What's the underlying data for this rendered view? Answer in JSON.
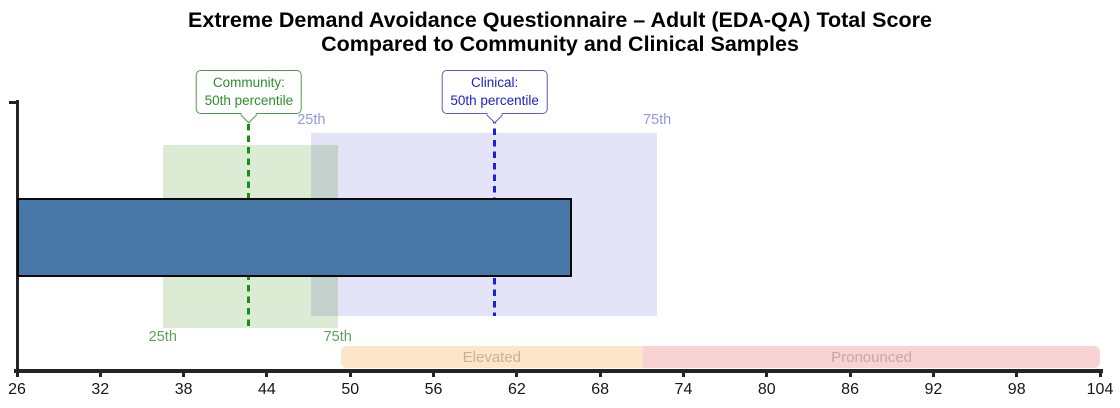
{
  "title": {
    "line1": "Extreme Demand Avoidance Questionnaire – Adult (EDA-QA) Total Score",
    "line2": "Compared to Community and Clinical Samples"
  },
  "labels": {
    "p25": "25th",
    "p75": "75th"
  },
  "callouts": {
    "community": {
      "line1": "Community:",
      "line2": "50th percentile"
    },
    "clinical": {
      "line1": "Clinical:",
      "line2": "50th percentile"
    }
  },
  "chart_data": {
    "type": "bar",
    "orientation": "horizontal",
    "title": "Extreme Demand Avoidance Questionnaire – Adult (EDA-QA) Total Score Compared to Community and Clinical Samples",
    "x_range": [
      26,
      104
    ],
    "x_ticks": [
      26,
      32,
      38,
      44,
      50,
      56,
      62,
      68,
      74,
      80,
      86,
      92,
      98,
      104
    ],
    "grid": false,
    "legend": false,
    "score_bar": {
      "start": 26,
      "value": 66
    },
    "reference_samples": [
      {
        "name": "Community",
        "percentile_25": 36.5,
        "percentile_50": 42.7,
        "percentile_75": 49.1
      },
      {
        "name": "Clinical",
        "percentile_25": 47.2,
        "percentile_50": 60.4,
        "percentile_75": 72.1
      }
    ],
    "bands": [
      {
        "label": "Elevated",
        "range": [
          49.3,
          71.1
        ]
      },
      {
        "label": "Pronounced",
        "range": [
          71.1,
          104
        ]
      }
    ]
  },
  "colors": {
    "title_color": "#000000",
    "axis_color": "#242424",
    "bar_fill": "#4878a8",
    "bar_border": "#0a0a0a",
    "community_fill": "#dcebd4",
    "clinical_fill": "#e3e4f7",
    "community_dash": "#168f16",
    "clinical_dash": "#1f1fd4",
    "community_border": "#4a9d4a",
    "community_text": "#2c8f2c",
    "clinical_border": "#5c5cc0",
    "clinical_text": "#2020cf",
    "percentile_lavender": "#9696e0",
    "percentile_green": "#61a061",
    "elevated_fill": "#fce5c8",
    "elevated_text": "#c9b193",
    "pronounced_fill": "#f9d3d1",
    "pronounced_text": "#cda5a3"
  }
}
